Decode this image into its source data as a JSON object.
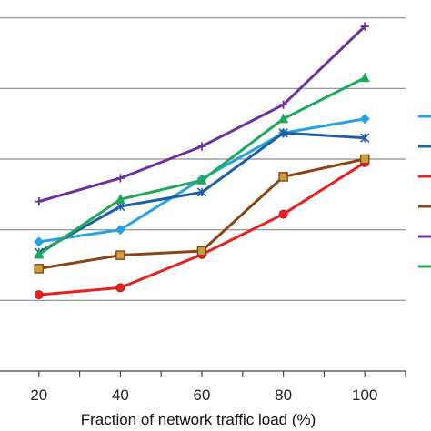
{
  "chart_data": {
    "type": "line",
    "title": "",
    "xlabel": "Fraction of network traffic load (%)",
    "ylabel": "",
    "x": [
      20,
      40,
      60,
      80,
      100
    ],
    "xlim": [
      10,
      110
    ],
    "ylim": [
      0,
      6
    ],
    "y_gridlines": [
      1,
      2,
      3,
      4,
      5,
      6
    ],
    "grid": "horizontal",
    "legend_placement": "right (cropped)",
    "series": [
      {
        "color": "#29A3E0",
        "marker": "diamond",
        "values": [
          1.83,
          2.0,
          2.72,
          3.37,
          3.57
        ]
      },
      {
        "color": "#1F5FA8",
        "marker": "asterisk",
        "values": [
          1.68,
          2.33,
          2.53,
          3.37,
          3.3
        ]
      },
      {
        "color": "#E8201E",
        "marker": "circle",
        "values": [
          1.08,
          1.18,
          1.65,
          2.22,
          2.95
        ]
      },
      {
        "color": "#8B4513",
        "marker": "square",
        "values": [
          1.45,
          1.64,
          1.7,
          2.75,
          3.0
        ]
      },
      {
        "color": "#7030A0",
        "marker": "plus",
        "values": [
          2.4,
          2.73,
          3.18,
          3.77,
          4.88
        ]
      },
      {
        "color": "#20A85A",
        "marker": "triangle",
        "values": [
          1.65,
          2.43,
          2.7,
          3.57,
          4.15
        ]
      }
    ]
  }
}
